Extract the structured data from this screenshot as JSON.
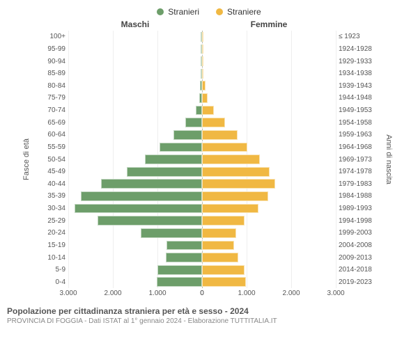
{
  "legend": {
    "male": {
      "label": "Stranieri",
      "color": "#6d9e6a"
    },
    "female": {
      "label": "Straniere",
      "color": "#f0b843"
    }
  },
  "headers": {
    "left": "Maschi",
    "right": "Femmine"
  },
  "axis_labels": {
    "left": "Fasce di età",
    "right": "Anni di nascita"
  },
  "colors": {
    "male_bar": "#6d9e6a",
    "female_bar": "#f0b843",
    "grid": "#eeeeee",
    "background": "#ffffff"
  },
  "x": {
    "max": 3000,
    "ticks_left": [
      3000,
      2000,
      1000,
      0
    ],
    "ticks_right": [
      0,
      1000,
      2000,
      3000
    ],
    "tick_labels_left": [
      "3.000",
      "2.000",
      "1.000",
      "0"
    ],
    "tick_labels_right": [
      "0",
      "1.000",
      "2.000",
      "3.000"
    ]
  },
  "rows": [
    {
      "age": "100+",
      "birth": "≤ 1923",
      "m": 0,
      "f": 0
    },
    {
      "age": "95-99",
      "birth": "1924-1928",
      "m": 0,
      "f": 0
    },
    {
      "age": "90-94",
      "birth": "1929-1933",
      "m": 0,
      "f": 5
    },
    {
      "age": "85-89",
      "birth": "1934-1938",
      "m": 15,
      "f": 20
    },
    {
      "age": "80-84",
      "birth": "1939-1943",
      "m": 40,
      "f": 80
    },
    {
      "age": "75-79",
      "birth": "1944-1948",
      "m": 60,
      "f": 120
    },
    {
      "age": "70-74",
      "birth": "1949-1953",
      "m": 140,
      "f": 260
    },
    {
      "age": "65-69",
      "birth": "1954-1958",
      "m": 380,
      "f": 520
    },
    {
      "age": "60-64",
      "birth": "1959-1963",
      "m": 640,
      "f": 800
    },
    {
      "age": "55-59",
      "birth": "1964-1968",
      "m": 960,
      "f": 1020
    },
    {
      "age": "50-54",
      "birth": "1969-1973",
      "m": 1280,
      "f": 1300
    },
    {
      "age": "45-49",
      "birth": "1974-1978",
      "m": 1680,
      "f": 1520
    },
    {
      "age": "40-44",
      "birth": "1979-1983",
      "m": 2260,
      "f": 1640
    },
    {
      "age": "35-39",
      "birth": "1984-1988",
      "m": 2720,
      "f": 1480
    },
    {
      "age": "30-34",
      "birth": "1989-1993",
      "m": 2860,
      "f": 1260
    },
    {
      "age": "25-29",
      "birth": "1994-1998",
      "m": 2340,
      "f": 960
    },
    {
      "age": "20-24",
      "birth": "1999-2003",
      "m": 1380,
      "f": 760
    },
    {
      "age": "15-19",
      "birth": "2004-2008",
      "m": 800,
      "f": 720
    },
    {
      "age": "10-14",
      "birth": "2009-2013",
      "m": 820,
      "f": 820
    },
    {
      "age": "5-9",
      "birth": "2014-2018",
      "m": 1000,
      "f": 960
    },
    {
      "age": "0-4",
      "birth": "2019-2023",
      "m": 1020,
      "f": 980
    }
  ],
  "title": {
    "main": "Popolazione per cittadinanza straniera per età e sesso - 2024",
    "sub": "PROVINCIA DI FOGGIA - Dati ISTAT al 1° gennaio 2024 - Elaborazione TUTTITALIA.IT"
  },
  "typography": {
    "legend_fontsize": 12,
    "label_fontsize": 10,
    "title_fontsize": 12
  }
}
